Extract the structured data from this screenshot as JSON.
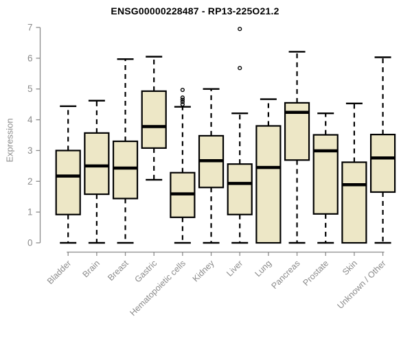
{
  "chart_data": {
    "type": "box",
    "title": "ENSG00000228487 - RP13-225O21.2",
    "ylabel": "Expression",
    "xlabel": "",
    "ylim": [
      0,
      7
    ],
    "yticks": [
      0,
      1,
      2,
      3,
      4,
      5,
      6,
      7
    ],
    "grid": false,
    "legend": "none",
    "categories": [
      "Bladder",
      "Brain",
      "Breast",
      "Gastric",
      "Hematopoietic cells",
      "Kidney",
      "Liver",
      "Lung",
      "Pancreas",
      "Prostate",
      "Skin",
      "Unknown / Other"
    ],
    "series": [
      {
        "name": "Bladder",
        "low": 0,
        "q1": 0.92,
        "median": 2.17,
        "q3": 3.0,
        "high": 4.44,
        "outliers": []
      },
      {
        "name": "Brain",
        "low": 0,
        "q1": 1.58,
        "median": 2.5,
        "q3": 3.57,
        "high": 4.62,
        "outliers": []
      },
      {
        "name": "Breast",
        "low": 0,
        "q1": 1.44,
        "median": 2.43,
        "q3": 3.3,
        "high": 5.97,
        "outliers": []
      },
      {
        "name": "Gastric",
        "low": 2.05,
        "q1": 3.08,
        "median": 3.78,
        "q3": 4.93,
        "high": 6.05,
        "outliers": []
      },
      {
        "name": "Hematopoietic cells",
        "low": 0,
        "q1": 0.83,
        "median": 1.59,
        "q3": 2.28,
        "high": 4.42,
        "outliers": [
          4.5,
          4.58,
          4.65,
          4.72,
          4.97
        ]
      },
      {
        "name": "Kidney",
        "low": 0,
        "q1": 1.8,
        "median": 2.67,
        "q3": 3.48,
        "high": 5.0,
        "outliers": []
      },
      {
        "name": "Liver",
        "low": 0,
        "q1": 0.92,
        "median": 1.93,
        "q3": 2.56,
        "high": 4.21,
        "outliers": [
          5.68,
          6.95
        ]
      },
      {
        "name": "Lung",
        "low": 0,
        "q1": 0.0,
        "median": 2.45,
        "q3": 3.8,
        "high": 4.67,
        "outliers": []
      },
      {
        "name": "Pancreas",
        "low": 0,
        "q1": 2.69,
        "median": 4.24,
        "q3": 4.55,
        "high": 6.21,
        "outliers": []
      },
      {
        "name": "Prostate",
        "low": 0,
        "q1": 0.94,
        "median": 2.99,
        "q3": 3.51,
        "high": 4.21,
        "outliers": []
      },
      {
        "name": "Skin",
        "low": 0,
        "q1": 0.0,
        "median": 1.89,
        "q3": 2.62,
        "high": 4.53,
        "outliers": []
      },
      {
        "name": "Unknown / Other",
        "low": 0,
        "q1": 1.65,
        "median": 2.76,
        "q3": 3.52,
        "high": 6.03,
        "outliers": []
      }
    ],
    "colors": {
      "box_fill": "#EDE7C6",
      "box_stroke": "#000000",
      "median": "#000000",
      "axis": "#8B8B8B",
      "tick_text": "#8B8B8B",
      "title_text": "#000000",
      "background": "#FFFFFF"
    }
  }
}
